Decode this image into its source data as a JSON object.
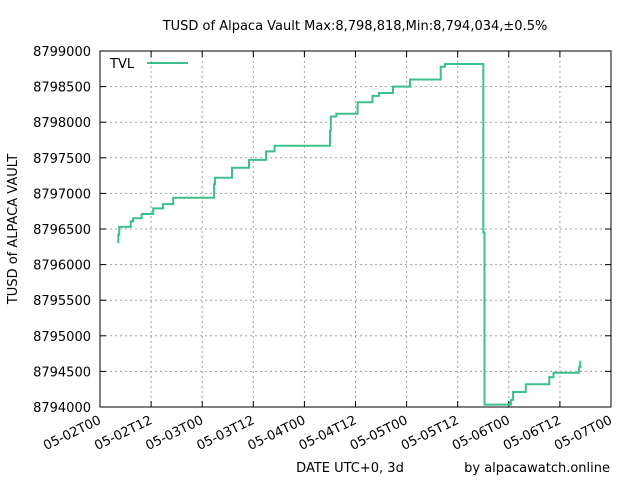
{
  "chart_data": {
    "type": "line",
    "title": "TUSD of Alpaca Vault Max:8,798,818,Min:8,794,034,±0.5%",
    "xlabel": "DATE UTC+0, 3d",
    "ylabel": "TUSD of ALPACA VAULT",
    "credit": "by alpacawatch.online",
    "ylim": [
      8794000,
      8799000
    ],
    "xlim_hours": [
      0,
      120
    ],
    "y_ticks": [
      "8794000",
      "8794500",
      "8795000",
      "8795500",
      "8796000",
      "8796500",
      "8797000",
      "8797500",
      "8798000",
      "8798500",
      "8799000"
    ],
    "x_ticks": [
      "05-02T00",
      "05-02T12",
      "05-03T00",
      "05-03T12",
      "05-04T00",
      "05-04T12",
      "05-05T00",
      "05-05T12",
      "05-06T00",
      "05-06T12",
      "05-07T00"
    ],
    "legend": {
      "label": "TVL",
      "position": "top-left"
    },
    "color": "#3cc08a",
    "grid": true,
    "series": [
      {
        "name": "TVL",
        "points": [
          [
            4.3,
            8796300
          ],
          [
            4.3,
            8796420
          ],
          [
            4.5,
            8796420
          ],
          [
            4.5,
            8796530
          ],
          [
            7.2,
            8796530
          ],
          [
            7.2,
            8796610
          ],
          [
            7.8,
            8796610
          ],
          [
            7.8,
            8796650
          ],
          [
            9.8,
            8796650
          ],
          [
            9.8,
            8796710
          ],
          [
            12.5,
            8796710
          ],
          [
            12.5,
            8796790
          ],
          [
            14.8,
            8796790
          ],
          [
            14.8,
            8796850
          ],
          [
            17.2,
            8796850
          ],
          [
            17.2,
            8796940
          ],
          [
            26.8,
            8796940
          ],
          [
            26.8,
            8797130
          ],
          [
            27.0,
            8797130
          ],
          [
            27.0,
            8797220
          ],
          [
            31.0,
            8797220
          ],
          [
            31.0,
            8797360
          ],
          [
            35.0,
            8797360
          ],
          [
            35.0,
            8797470
          ],
          [
            39.0,
            8797470
          ],
          [
            39.0,
            8797590
          ],
          [
            41.0,
            8797590
          ],
          [
            41.0,
            8797670
          ],
          [
            54.0,
            8797670
          ],
          [
            54.0,
            8797880
          ],
          [
            54.2,
            8797880
          ],
          [
            54.2,
            8798080
          ],
          [
            55.5,
            8798080
          ],
          [
            55.5,
            8798120
          ],
          [
            60.5,
            8798120
          ],
          [
            60.5,
            8798280
          ],
          [
            64.0,
            8798280
          ],
          [
            64.0,
            8798370
          ],
          [
            65.5,
            8798370
          ],
          [
            65.5,
            8798410
          ],
          [
            68.8,
            8798410
          ],
          [
            68.8,
            8798500
          ],
          [
            72.8,
            8798500
          ],
          [
            72.8,
            8798600
          ],
          [
            80.0,
            8798600
          ],
          [
            80.0,
            8798780
          ],
          [
            81.0,
            8798780
          ],
          [
            81.0,
            8798818
          ],
          [
            90.0,
            8798818
          ],
          [
            90.0,
            8796450
          ],
          [
            90.3,
            8796450
          ],
          [
            90.3,
            8794034
          ],
          [
            96.5,
            8794034
          ],
          [
            96.5,
            8794100
          ],
          [
            97.0,
            8794100
          ],
          [
            97.0,
            8794210
          ],
          [
            100.0,
            8794210
          ],
          [
            100.0,
            8794320
          ],
          [
            105.5,
            8794320
          ],
          [
            105.5,
            8794420
          ],
          [
            106.5,
            8794420
          ],
          [
            106.5,
            8794480
          ],
          [
            112.5,
            8794480
          ],
          [
            112.5,
            8794560
          ],
          [
            112.8,
            8794560
          ],
          [
            112.8,
            8794650
          ]
        ]
      }
    ]
  }
}
